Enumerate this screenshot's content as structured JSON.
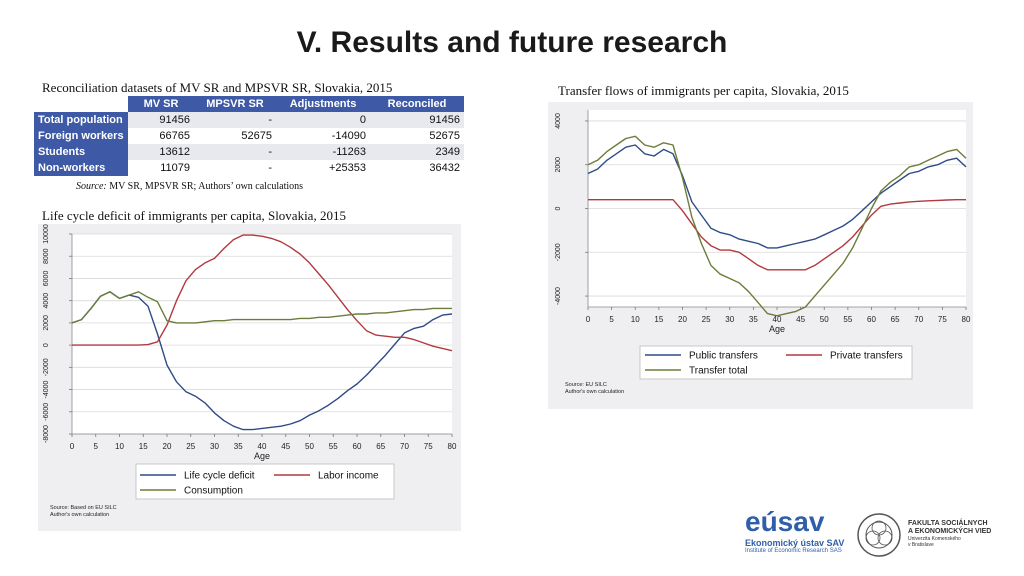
{
  "slide": {
    "title": "V. Results and future research"
  },
  "table": {
    "title": "Reconciliation datasets of MV SR and MPSVR SR, Slovakia, 2015",
    "headers": [
      "MV SR",
      "MPSVR SR",
      "Adjustments",
      "Reconciled"
    ],
    "rows": [
      {
        "label": "Total population",
        "cells": [
          "91456",
          "-",
          "0",
          "91456"
        ]
      },
      {
        "label": "Foreign workers",
        "cells": [
          "66765",
          "52675",
          "-14090",
          "52675"
        ]
      },
      {
        "label": "Students",
        "cells": [
          "13612",
          "-",
          "-11263",
          "2349"
        ]
      },
      {
        "label": "Non-workers",
        "cells": [
          "11079",
          "-",
          "+25353",
          "36432"
        ]
      }
    ],
    "source_label": "Source:",
    "source_text": " MV SR, MPSVR SR; Authors’ own calculations"
  },
  "colors": {
    "blue": "#2f4b86",
    "red": "#b2393f",
    "green": "#6a7d3a",
    "header": "#3e5aa6",
    "panel": "#efeff1"
  },
  "chart_data": [
    {
      "type": "line",
      "title": "Life cycle deficit of immigrants per capita, Slovakia, 2015",
      "xlabel": "Age",
      "ylabel": "",
      "xlim": [
        0,
        80
      ],
      "ylim": [
        -8000,
        10000
      ],
      "xticks": [
        "0",
        "5",
        "10",
        "15",
        "20",
        "25",
        "30",
        "35",
        "40",
        "45",
        "50",
        "55",
        "60",
        "65",
        "70",
        "75",
        "80"
      ],
      "yticks": [
        "-8000",
        "-6000",
        "-4000",
        "-2000",
        "0",
        "2000",
        "4000",
        "6000",
        "8000",
        "10000"
      ],
      "x": [
        0,
        2,
        4,
        6,
        8,
        10,
        12,
        14,
        16,
        18,
        20,
        22,
        24,
        26,
        28,
        30,
        32,
        34,
        36,
        38,
        40,
        42,
        44,
        46,
        48,
        50,
        52,
        54,
        56,
        58,
        60,
        62,
        64,
        66,
        68,
        70,
        72,
        74,
        76,
        78,
        80
      ],
      "series": [
        {
          "name": "Life cycle deficit",
          "color": "#2f4b86",
          "values": [
            2000,
            2300,
            3300,
            4400,
            4800,
            4200,
            4500,
            4300,
            3500,
            1000,
            -1800,
            -3300,
            -4200,
            -4600,
            -5200,
            -6100,
            -6800,
            -7300,
            -7600,
            -7600,
            -7500,
            -7400,
            -7300,
            -7100,
            -6800,
            -6300,
            -5900,
            -5400,
            -4800,
            -4100,
            -3500,
            -2700,
            -1800,
            -900,
            100,
            1100,
            1500,
            1700,
            2300,
            2700,
            2800
          ]
        },
        {
          "name": "Labor income",
          "color": "#b2393f",
          "values": [
            0,
            0,
            0,
            0,
            0,
            0,
            0,
            0,
            50,
            300,
            1800,
            4000,
            5800,
            6800,
            7400,
            7800,
            8700,
            9500,
            9900,
            9900,
            9800,
            9600,
            9300,
            8800,
            8200,
            7400,
            6400,
            5400,
            4300,
            3200,
            2200,
            1300,
            900,
            800,
            700,
            700,
            500,
            200,
            -100,
            -300,
            -500
          ]
        },
        {
          "name": "Consumption",
          "color": "#6a7d3a",
          "values": [
            2000,
            2300,
            3300,
            4400,
            4800,
            4200,
            4500,
            4800,
            4300,
            3900,
            2200,
            2000,
            2000,
            2000,
            2100,
            2200,
            2200,
            2300,
            2300,
            2300,
            2300,
            2300,
            2300,
            2300,
            2400,
            2400,
            2500,
            2500,
            2600,
            2700,
            2800,
            2800,
            2900,
            2900,
            3000,
            3100,
            3200,
            3200,
            3300,
            3300,
            3300
          ]
        }
      ],
      "legend_position": "bottom",
      "source_lines": [
        "Source: Based on EU SILC",
        "Author's own calculation"
      ]
    },
    {
      "type": "line",
      "title": "Transfer flows of immigrants per capita, Slovakia, 2015",
      "xlabel": "Age",
      "ylabel": "",
      "xlim": [
        0,
        80
      ],
      "ylim": [
        -4500,
        4500
      ],
      "xticks": [
        "0",
        "5",
        "10",
        "15",
        "20",
        "25",
        "30",
        "35",
        "40",
        "45",
        "50",
        "55",
        "60",
        "65",
        "70",
        "75",
        "80"
      ],
      "yticks": [
        "-4000",
        "-2000",
        "0",
        "2000",
        "4000"
      ],
      "x": [
        0,
        2,
        4,
        6,
        8,
        10,
        12,
        14,
        16,
        18,
        20,
        22,
        24,
        26,
        28,
        30,
        32,
        34,
        36,
        38,
        40,
        42,
        44,
        46,
        48,
        50,
        52,
        54,
        56,
        58,
        60,
        62,
        64,
        66,
        68,
        70,
        72,
        74,
        76,
        78,
        80
      ],
      "series": [
        {
          "name": "Public transfers",
          "color": "#2f4b86",
          "values": [
            1600,
            1800,
            2200,
            2500,
            2800,
            2900,
            2500,
            2400,
            2700,
            2500,
            1500,
            300,
            -300,
            -900,
            -1100,
            -1200,
            -1400,
            -1500,
            -1600,
            -1800,
            -1800,
            -1700,
            -1600,
            -1500,
            -1400,
            -1200,
            -1000,
            -800,
            -500,
            -100,
            300,
            700,
            1000,
            1300,
            1600,
            1700,
            1900,
            2000,
            2200,
            2300,
            1900
          ]
        },
        {
          "name": "Private transfers",
          "color": "#b2393f",
          "values": [
            400,
            400,
            400,
            400,
            400,
            400,
            400,
            400,
            400,
            400,
            -100,
            -700,
            -1300,
            -1700,
            -1900,
            -1900,
            -2000,
            -2300,
            -2600,
            -2800,
            -2800,
            -2800,
            -2800,
            -2800,
            -2600,
            -2300,
            -2000,
            -1700,
            -1300,
            -800,
            -300,
            100,
            200,
            250,
            300,
            330,
            350,
            370,
            390,
            400,
            400
          ]
        },
        {
          "name": "Transfer total",
          "color": "#6a7d3a",
          "values": [
            2000,
            2200,
            2600,
            2900,
            3200,
            3300,
            2900,
            2800,
            3000,
            2900,
            1400,
            -400,
            -1600,
            -2600,
            -3000,
            -3200,
            -3400,
            -3800,
            -4300,
            -4800,
            -4900,
            -4800,
            -4700,
            -4500,
            -4000,
            -3500,
            -3000,
            -2500,
            -1800,
            -900,
            0,
            800,
            1200,
            1500,
            1900,
            2000,
            2200,
            2400,
            2600,
            2700,
            2300
          ]
        }
      ],
      "legend_position": "bottom",
      "source_lines": [
        "Source: EU SILC",
        "Author's own calculation"
      ]
    }
  ],
  "logos": {
    "esav_word": "eúsav",
    "esav_line1": "Ekonomický ústav SAV",
    "esav_line2": "Institute of Economic Research SAS",
    "fsev_line1": "FAKULTA SOCIÁLNYCH",
    "fsev_line2": "A EKONOMICKÝCH VIED",
    "fsev_line3": "Univerzita Komenského",
    "fsev_line4": "v Bratislave"
  }
}
